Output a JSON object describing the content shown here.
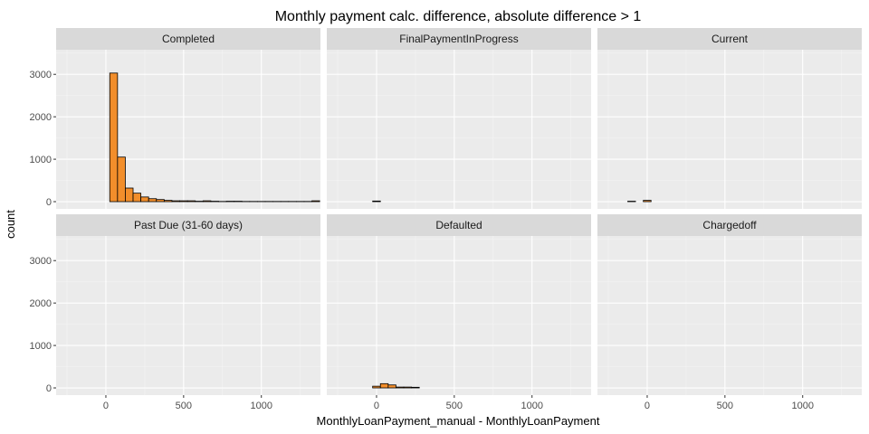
{
  "chart_data": {
    "type": "bar",
    "subtype": "faceted-histogram",
    "title": "Monthly payment calc. difference, absolute difference > 1",
    "xlabel": "MonthlyLoanPayment_manual - MonthlyLoanPayment",
    "ylabel": "count",
    "xlim": [
      -320,
      1380
    ],
    "ylim": [
      -170,
      3580
    ],
    "x_ticks": [
      0,
      500,
      1000
    ],
    "x_tick_labels": [
      "0",
      "500",
      "1000"
    ],
    "y_ticks": [
      0,
      1000,
      2000,
      3000
    ],
    "y_tick_labels": [
      "0",
      "1000",
      "2000",
      "3000"
    ],
    "bin_width": 50,
    "bin_start": -325,
    "bin_count": 34,
    "grid": true,
    "facet_layout": {
      "rows": 2,
      "cols": 3
    },
    "bar_fill": "#f28e2b",
    "bar_stroke": "#000000",
    "panel_background": "#ebebeb",
    "strip_background": "#d9d9d9",
    "panels": [
      {
        "name": "Completed",
        "counts": [
          0,
          0,
          0,
          0,
          0,
          0,
          0,
          3030,
          1050,
          320,
          200,
          110,
          70,
          50,
          30,
          20,
          20,
          20,
          10,
          20,
          10,
          5,
          10,
          10,
          5,
          5,
          5,
          5,
          5,
          5,
          5,
          5,
          5,
          20
        ]
      },
      {
        "name": "FinalPaymentInProgress",
        "counts": [
          0,
          0,
          0,
          0,
          0,
          0,
          15,
          0,
          0,
          0,
          0,
          0,
          0,
          0,
          0,
          0,
          0,
          0,
          0,
          0,
          0,
          0,
          0,
          0,
          0,
          0,
          0,
          0,
          0,
          0,
          0,
          0,
          0,
          0
        ]
      },
      {
        "name": "Current",
        "counts": [
          0,
          0,
          0,
          0,
          10,
          0,
          30,
          0,
          0,
          0,
          0,
          0,
          0,
          0,
          0,
          0,
          0,
          0,
          0,
          0,
          0,
          0,
          0,
          0,
          0,
          0,
          0,
          0,
          0,
          0,
          0,
          0,
          0,
          0
        ]
      },
      {
        "name": "Past Due (31-60 days)",
        "counts": [
          0,
          0,
          0,
          0,
          0,
          0,
          0,
          0,
          0,
          0,
          0,
          0,
          0,
          0,
          0,
          0,
          0,
          0,
          0,
          0,
          0,
          0,
          0,
          0,
          0,
          0,
          0,
          0,
          0,
          0,
          0,
          0,
          0,
          0
        ]
      },
      {
        "name": "Defaulted",
        "counts": [
          0,
          0,
          0,
          0,
          0,
          0,
          40,
          100,
          70,
          20,
          20,
          15,
          0,
          0,
          0,
          0,
          0,
          0,
          0,
          0,
          0,
          0,
          0,
          0,
          0,
          0,
          0,
          0,
          0,
          0,
          0,
          0,
          0,
          0
        ]
      },
      {
        "name": "Chargedoff",
        "counts": [
          0,
          0,
          0,
          0,
          0,
          0,
          0,
          0,
          0,
          0,
          0,
          0,
          0,
          0,
          0,
          0,
          0,
          0,
          0,
          0,
          0,
          0,
          0,
          0,
          0,
          0,
          0,
          0,
          0,
          0,
          0,
          0,
          0,
          0
        ]
      }
    ]
  }
}
